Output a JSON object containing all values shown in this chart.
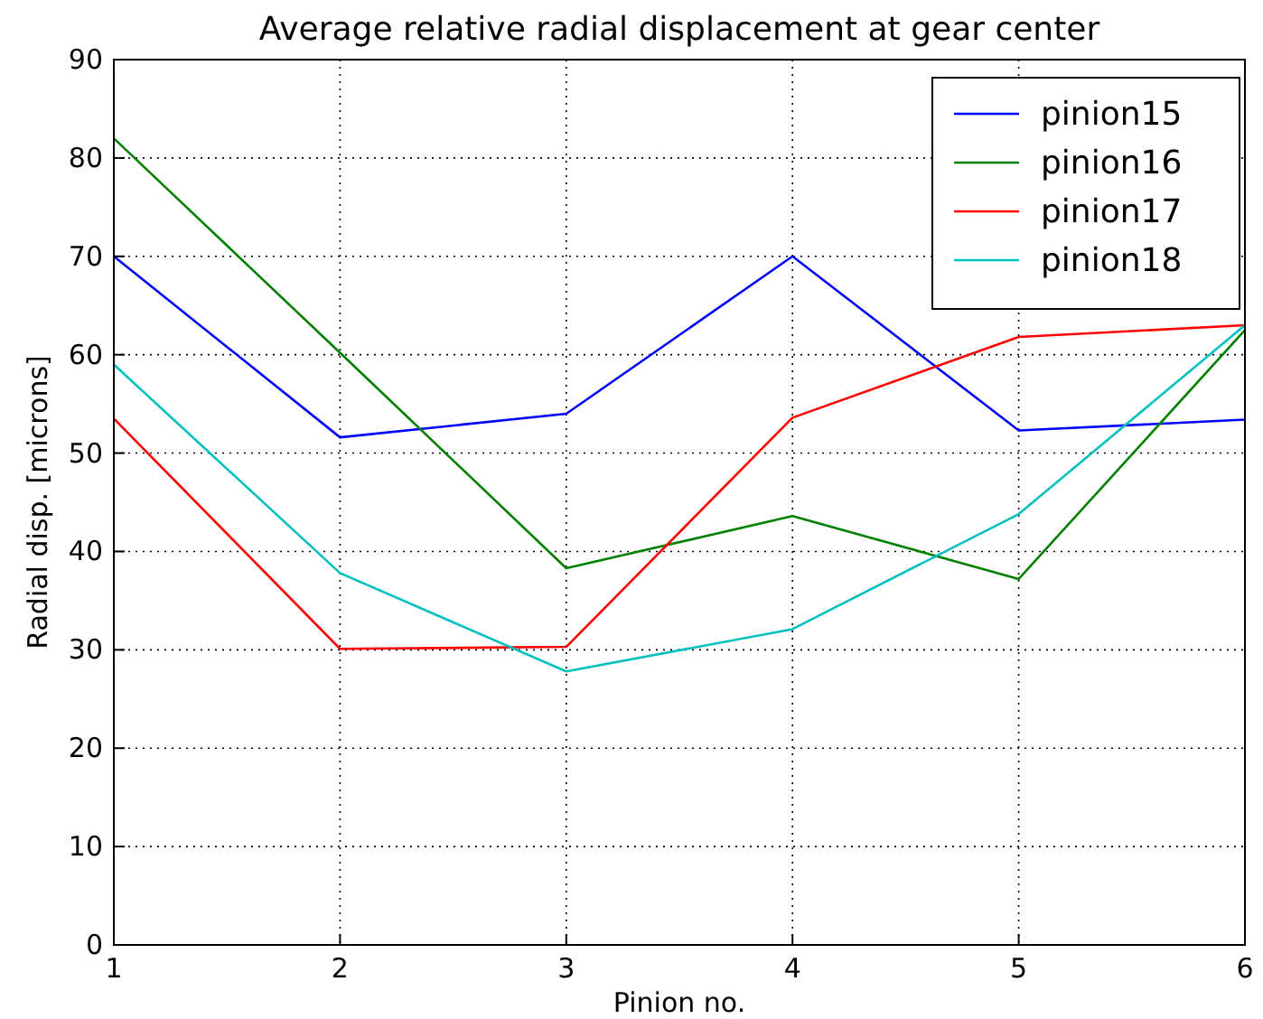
{
  "chart_data": {
    "type": "line",
    "title": "Average relative radial displacement at gear center",
    "xlabel": "Pinion no.",
    "ylabel": "Radial disp. [microns]",
    "x": [
      1,
      2,
      3,
      4,
      5,
      6
    ],
    "series": [
      {
        "name": "pinion15",
        "color": "#0000ff",
        "values": [
          70,
          51.6,
          54,
          70,
          52.3,
          53.4
        ]
      },
      {
        "name": "pinion16",
        "color": "#008000",
        "values": [
          82,
          60.2,
          38.3,
          43.6,
          37.2,
          62.5
        ]
      },
      {
        "name": "pinion17",
        "color": "#ff0000",
        "values": [
          53.5,
          30.1,
          30.3,
          53.6,
          61.8,
          63
        ]
      },
      {
        "name": "pinion18",
        "color": "#00bfbf",
        "values": [
          59,
          37.8,
          27.8,
          32.1,
          43.8,
          63
        ]
      }
    ],
    "xlim": [
      1,
      6
    ],
    "xticks": [
      1,
      2,
      3,
      4,
      5,
      6
    ],
    "ylim": [
      0,
      90
    ],
    "yticks": [
      0,
      10,
      20,
      30,
      40,
      50,
      60,
      70,
      80,
      90
    ],
    "grid": true,
    "legend": "top right",
    "marker": "none",
    "line_style": "solid"
  }
}
